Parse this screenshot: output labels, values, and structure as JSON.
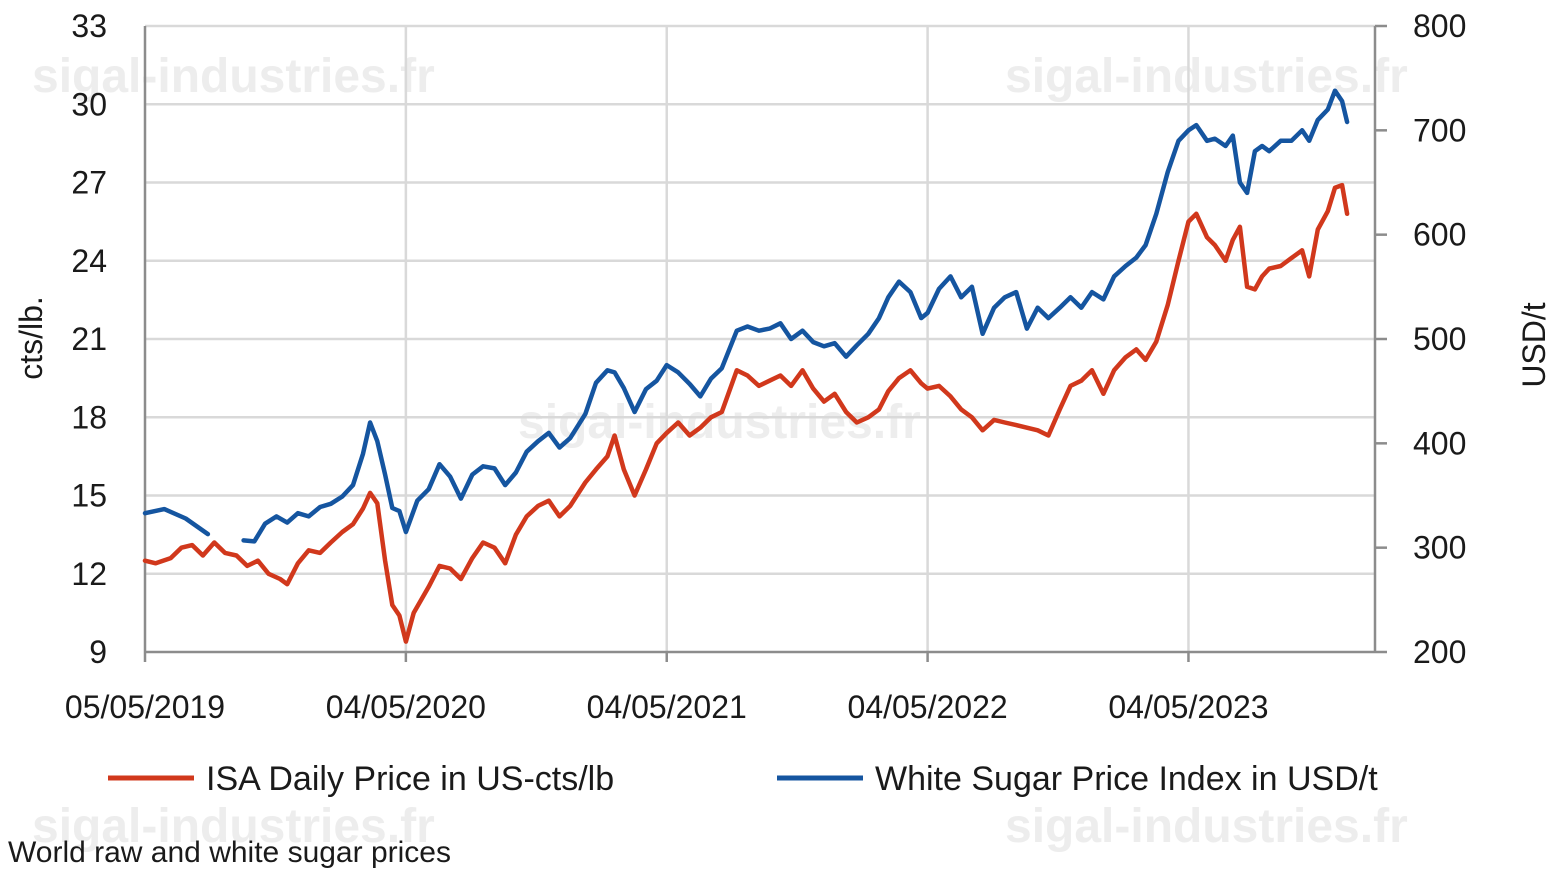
{
  "caption": "World raw and white sugar prices",
  "watermark_text": "sigal-industries.fr",
  "chart_data": {
    "type": "line",
    "title": "",
    "x_type": "date",
    "xlim": [
      "2019-05-05",
      "2024-01-20"
    ],
    "x_ticks": [
      "2019-05-05",
      "2020-05-04",
      "2021-05-04",
      "2022-05-04",
      "2023-05-04"
    ],
    "x_tick_labels": [
      "05/05/2019",
      "04/05/2020",
      "04/05/2021",
      "04/05/2022",
      "04/05/2023"
    ],
    "y_left": {
      "label": "cts/lb.",
      "ylim": [
        9,
        33
      ],
      "ticks": [
        9,
        12,
        15,
        18,
        21,
        24,
        27,
        30,
        33
      ]
    },
    "y_right": {
      "label": "USD/t",
      "ylim": [
        200,
        800
      ],
      "ticks": [
        200,
        300,
        400,
        500,
        600,
        700,
        800
      ]
    },
    "grid": true,
    "legend_position": "bottom",
    "series": [
      {
        "name": "ISA Daily Price in US-cts/lb",
        "axis": "left",
        "color": "#d1381c",
        "points": [
          [
            "2019-05-05",
            12.5
          ],
          [
            "2019-05-20",
            12.4
          ],
          [
            "2019-06-10",
            12.6
          ],
          [
            "2019-06-25",
            13.0
          ],
          [
            "2019-07-10",
            13.1
          ],
          [
            "2019-07-25",
            12.7
          ],
          [
            "2019-08-10",
            13.2
          ],
          [
            "2019-08-25",
            12.8
          ],
          [
            "2019-09-10",
            12.7
          ],
          [
            "2019-09-25",
            12.3
          ],
          [
            "2019-10-10",
            12.5
          ],
          [
            "2019-10-25",
            12.0
          ],
          [
            "2019-11-10",
            11.8
          ],
          [
            "2019-11-20",
            11.6
          ],
          [
            "2019-12-05",
            12.4
          ],
          [
            "2019-12-20",
            12.9
          ],
          [
            "2020-01-05",
            12.8
          ],
          [
            "2020-01-20",
            13.2
          ],
          [
            "2020-02-05",
            13.6
          ],
          [
            "2020-02-20",
            13.9
          ],
          [
            "2020-03-05",
            14.5
          ],
          [
            "2020-03-15",
            15.1
          ],
          [
            "2020-03-25",
            14.7
          ],
          [
            "2020-04-05",
            12.5
          ],
          [
            "2020-04-15",
            10.8
          ],
          [
            "2020-04-25",
            10.4
          ],
          [
            "2020-05-04",
            9.4
          ],
          [
            "2020-05-15",
            10.5
          ],
          [
            "2020-06-05",
            11.5
          ],
          [
            "2020-06-20",
            12.3
          ],
          [
            "2020-07-05",
            12.2
          ],
          [
            "2020-07-20",
            11.8
          ],
          [
            "2020-08-05",
            12.6
          ],
          [
            "2020-08-20",
            13.2
          ],
          [
            "2020-09-05",
            13.0
          ],
          [
            "2020-09-20",
            12.4
          ],
          [
            "2020-10-05",
            13.5
          ],
          [
            "2020-10-20",
            14.2
          ],
          [
            "2020-11-05",
            14.6
          ],
          [
            "2020-11-20",
            14.8
          ],
          [
            "2020-12-05",
            14.2
          ],
          [
            "2020-12-20",
            14.6
          ],
          [
            "2021-01-10",
            15.5
          ],
          [
            "2021-01-25",
            16.0
          ],
          [
            "2021-02-10",
            16.5
          ],
          [
            "2021-02-20",
            17.3
          ],
          [
            "2021-03-05",
            16.0
          ],
          [
            "2021-03-20",
            15.0
          ],
          [
            "2021-04-05",
            16.0
          ],
          [
            "2021-04-20",
            17.0
          ],
          [
            "2021-05-04",
            17.4
          ],
          [
            "2021-05-20",
            17.8
          ],
          [
            "2021-06-05",
            17.3
          ],
          [
            "2021-06-20",
            17.6
          ],
          [
            "2021-07-05",
            18.0
          ],
          [
            "2021-07-20",
            18.2
          ],
          [
            "2021-08-10",
            19.8
          ],
          [
            "2021-08-25",
            19.6
          ],
          [
            "2021-09-10",
            19.2
          ],
          [
            "2021-09-25",
            19.4
          ],
          [
            "2021-10-10",
            19.6
          ],
          [
            "2021-10-25",
            19.2
          ],
          [
            "2021-11-10",
            19.8
          ],
          [
            "2021-11-25",
            19.1
          ],
          [
            "2021-12-10",
            18.6
          ],
          [
            "2021-12-25",
            18.9
          ],
          [
            "2022-01-10",
            18.2
          ],
          [
            "2022-01-25",
            17.8
          ],
          [
            "2022-02-10",
            18.0
          ],
          [
            "2022-02-25",
            18.3
          ],
          [
            "2022-03-10",
            19.0
          ],
          [
            "2022-03-25",
            19.5
          ],
          [
            "2022-04-10",
            19.8
          ],
          [
            "2022-04-25",
            19.3
          ],
          [
            "2022-05-04",
            19.1
          ],
          [
            "2022-05-20",
            19.2
          ],
          [
            "2022-06-05",
            18.8
          ],
          [
            "2022-06-20",
            18.3
          ],
          [
            "2022-07-05",
            18.0
          ],
          [
            "2022-07-20",
            17.5
          ],
          [
            "2022-08-05",
            17.9
          ],
          [
            "2022-08-20",
            17.8
          ],
          [
            "2022-09-05",
            17.7
          ],
          [
            "2022-09-20",
            17.6
          ],
          [
            "2022-10-05",
            17.5
          ],
          [
            "2022-10-20",
            17.3
          ],
          [
            "2022-11-05",
            18.3
          ],
          [
            "2022-11-20",
            19.2
          ],
          [
            "2022-12-05",
            19.4
          ],
          [
            "2022-12-20",
            19.8
          ],
          [
            "2023-01-05",
            18.9
          ],
          [
            "2023-01-20",
            19.8
          ],
          [
            "2023-02-05",
            20.3
          ],
          [
            "2023-02-20",
            20.6
          ],
          [
            "2023-03-05",
            20.2
          ],
          [
            "2023-03-20",
            20.9
          ],
          [
            "2023-04-05",
            22.3
          ],
          [
            "2023-04-20",
            24.0
          ],
          [
            "2023-05-04",
            25.5
          ],
          [
            "2023-05-15",
            25.8
          ],
          [
            "2023-05-30",
            24.9
          ],
          [
            "2023-06-10",
            24.6
          ],
          [
            "2023-06-25",
            24.0
          ],
          [
            "2023-07-05",
            24.8
          ],
          [
            "2023-07-15",
            25.3
          ],
          [
            "2023-07-25",
            23.0
          ],
          [
            "2023-08-05",
            22.9
          ],
          [
            "2023-08-15",
            23.4
          ],
          [
            "2023-08-25",
            23.7
          ],
          [
            "2023-09-10",
            23.8
          ],
          [
            "2023-09-25",
            24.1
          ],
          [
            "2023-10-10",
            24.4
          ],
          [
            "2023-10-20",
            23.4
          ],
          [
            "2023-11-01",
            25.2
          ],
          [
            "2023-11-15",
            25.9
          ],
          [
            "2023-11-25",
            26.8
          ],
          [
            "2023-12-05",
            26.9
          ],
          [
            "2023-12-12",
            25.8
          ]
        ]
      },
      {
        "name": "White Sugar Price Index in USD/t",
        "axis": "right",
        "color": "#1555a0",
        "points": [
          [
            "2019-05-05",
            333
          ],
          [
            "2019-06-01",
            337
          ],
          [
            "2019-07-01",
            328
          ],
          [
            "2019-08-01",
            313
          ],
          [
            "2019-08-20",
            null
          ],
          [
            "2019-09-20",
            307
          ],
          [
            "2019-10-05",
            306
          ],
          [
            "2019-10-20",
            323
          ],
          [
            "2019-11-05",
            330
          ],
          [
            "2019-11-20",
            324
          ],
          [
            "2019-12-05",
            333
          ],
          [
            "2019-12-20",
            330
          ],
          [
            "2020-01-05",
            339
          ],
          [
            "2020-01-20",
            342
          ],
          [
            "2020-02-05",
            349
          ],
          [
            "2020-02-20",
            360
          ],
          [
            "2020-03-05",
            390
          ],
          [
            "2020-03-15",
            420
          ],
          [
            "2020-03-25",
            402
          ],
          [
            "2020-04-05",
            370
          ],
          [
            "2020-04-15",
            338
          ],
          [
            "2020-04-25",
            335
          ],
          [
            "2020-05-04",
            315
          ],
          [
            "2020-05-20",
            345
          ],
          [
            "2020-06-05",
            356
          ],
          [
            "2020-06-20",
            380
          ],
          [
            "2020-07-05",
            368
          ],
          [
            "2020-07-20",
            347
          ],
          [
            "2020-08-05",
            370
          ],
          [
            "2020-08-20",
            378
          ],
          [
            "2020-09-05",
            376
          ],
          [
            "2020-09-20",
            360
          ],
          [
            "2020-10-05",
            372
          ],
          [
            "2020-10-20",
            392
          ],
          [
            "2020-11-05",
            402
          ],
          [
            "2020-11-20",
            410
          ],
          [
            "2020-12-05",
            396
          ],
          [
            "2020-12-20",
            405
          ],
          [
            "2021-01-10",
            428
          ],
          [
            "2021-01-25",
            458
          ],
          [
            "2021-02-10",
            470
          ],
          [
            "2021-02-20",
            468
          ],
          [
            "2021-03-05",
            453
          ],
          [
            "2021-03-20",
            430
          ],
          [
            "2021-04-05",
            452
          ],
          [
            "2021-04-20",
            460
          ],
          [
            "2021-05-04",
            475
          ],
          [
            "2021-05-20",
            468
          ],
          [
            "2021-06-05",
            457
          ],
          [
            "2021-06-20",
            445
          ],
          [
            "2021-07-05",
            462
          ],
          [
            "2021-07-20",
            472
          ],
          [
            "2021-08-10",
            508
          ],
          [
            "2021-08-25",
            512
          ],
          [
            "2021-09-10",
            508
          ],
          [
            "2021-09-25",
            510
          ],
          [
            "2021-10-10",
            515
          ],
          [
            "2021-10-25",
            500
          ],
          [
            "2021-11-10",
            508
          ],
          [
            "2021-11-25",
            497
          ],
          [
            "2021-12-10",
            493
          ],
          [
            "2021-12-25",
            496
          ],
          [
            "2022-01-10",
            483
          ],
          [
            "2022-01-25",
            494
          ],
          [
            "2022-02-10",
            505
          ],
          [
            "2022-02-25",
            520
          ],
          [
            "2022-03-10",
            540
          ],
          [
            "2022-03-25",
            555
          ],
          [
            "2022-04-10",
            545
          ],
          [
            "2022-04-25",
            520
          ],
          [
            "2022-05-04",
            525
          ],
          [
            "2022-05-20",
            548
          ],
          [
            "2022-06-05",
            560
          ],
          [
            "2022-06-20",
            540
          ],
          [
            "2022-07-05",
            550
          ],
          [
            "2022-07-20",
            505
          ],
          [
            "2022-08-05",
            530
          ],
          [
            "2022-08-20",
            540
          ],
          [
            "2022-09-05",
            545
          ],
          [
            "2022-09-20",
            510
          ],
          [
            "2022-10-05",
            530
          ],
          [
            "2022-10-20",
            520
          ],
          [
            "2022-11-05",
            530
          ],
          [
            "2022-11-20",
            540
          ],
          [
            "2022-12-05",
            530
          ],
          [
            "2022-12-20",
            545
          ],
          [
            "2023-01-05",
            538
          ],
          [
            "2023-01-20",
            560
          ],
          [
            "2023-02-05",
            570
          ],
          [
            "2023-02-20",
            578
          ],
          [
            "2023-03-05",
            590
          ],
          [
            "2023-03-20",
            620
          ],
          [
            "2023-04-05",
            660
          ],
          [
            "2023-04-20",
            690
          ],
          [
            "2023-05-04",
            700
          ],
          [
            "2023-05-15",
            705
          ],
          [
            "2023-05-30",
            690
          ],
          [
            "2023-06-10",
            692
          ],
          [
            "2023-06-25",
            685
          ],
          [
            "2023-07-05",
            695
          ],
          [
            "2023-07-15",
            650
          ],
          [
            "2023-07-25",
            640
          ],
          [
            "2023-08-05",
            680
          ],
          [
            "2023-08-15",
            685
          ],
          [
            "2023-08-25",
            680
          ],
          [
            "2023-09-10",
            690
          ],
          [
            "2023-09-25",
            690
          ],
          [
            "2023-10-10",
            700
          ],
          [
            "2023-10-20",
            690
          ],
          [
            "2023-11-01",
            710
          ],
          [
            "2023-11-15",
            720
          ],
          [
            "2023-11-25",
            738
          ],
          [
            "2023-12-05",
            728
          ],
          [
            "2023-12-12",
            708
          ]
        ]
      }
    ]
  }
}
